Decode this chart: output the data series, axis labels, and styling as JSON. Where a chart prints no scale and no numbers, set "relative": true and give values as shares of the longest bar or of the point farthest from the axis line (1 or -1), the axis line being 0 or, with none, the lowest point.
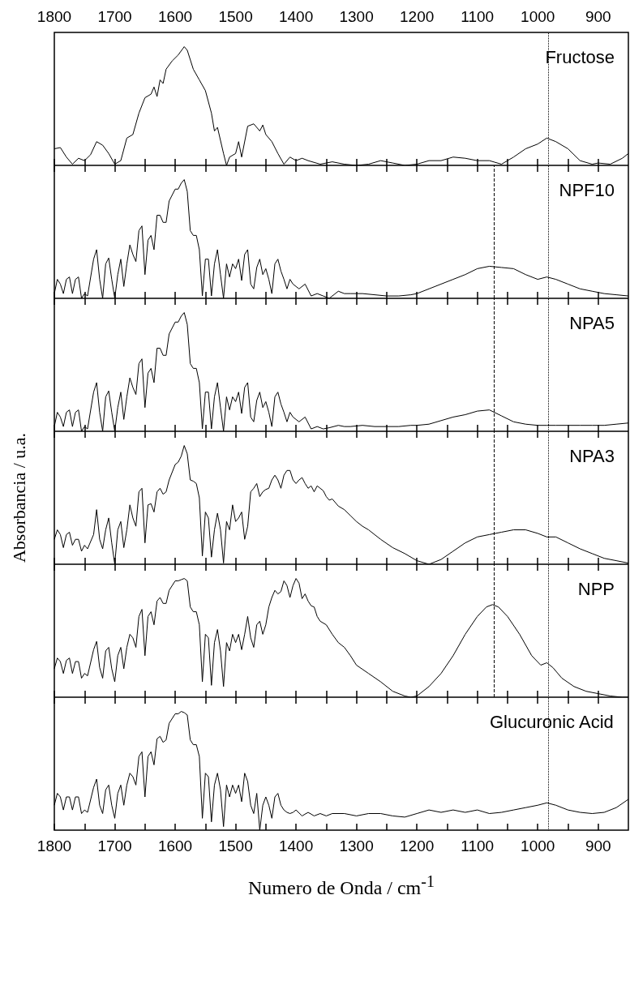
{
  "chart_data": [
    {
      "type": "line",
      "title": "Fructose",
      "relative": true,
      "color": "#000000",
      "xlim": [
        1800,
        850
      ],
      "xticks": [
        1800,
        {
          "value": 1750,
          "label": null
        },
        1700,
        {
          "value": 1650,
          "label": null
        },
        1600,
        {
          "value": 1550,
          "label": null
        },
        1500,
        {
          "value": 1450,
          "label": null
        },
        1400,
        {
          "value": 1350,
          "label": null
        },
        1300,
        {
          "value": 1250,
          "label": null
        },
        1200,
        {
          "value": 1150,
          "label": null
        },
        1100,
        {
          "value": 1050,
          "label": null
        },
        1000,
        {
          "value": 950,
          "label": null
        },
        900
      ],
      "ref_lines": [
        {
          "axis": "x",
          "value": 982,
          "line_style": "dotted"
        }
      ],
      "x": [
        1800,
        1790,
        1780,
        1770,
        1760,
        1750,
        1740,
        1730,
        1720,
        1710,
        1700,
        1690,
        1680,
        1670,
        1660,
        1650,
        1640,
        1635,
        1630,
        1625,
        1620,
        1615,
        1605,
        1595,
        1585,
        1580,
        1570,
        1560,
        1550,
        1540,
        1535,
        1530,
        1520,
        1515,
        1510,
        1500,
        1495,
        1490,
        1480,
        1470,
        1460,
        1455,
        1450,
        1440,
        1430,
        1420,
        1410,
        1400,
        1390,
        1380,
        1360,
        1340,
        1320,
        1300,
        1280,
        1260,
        1240,
        1220,
        1200,
        1180,
        1160,
        1140,
        1120,
        1100,
        1080,
        1060,
        1040,
        1020,
        1000,
        985,
        970,
        950,
        930,
        910,
        900,
        880,
        860,
        850
      ],
      "values": [
        0.14,
        0.15,
        0.07,
        0.01,
        0.06,
        0.04,
        0.09,
        0.2,
        0.17,
        0.1,
        0.01,
        0.04,
        0.23,
        0.26,
        0.44,
        0.57,
        0.6,
        0.66,
        0.58,
        0.72,
        0.69,
        0.81,
        0.88,
        0.93,
        1,
        0.97,
        0.81,
        0.72,
        0.63,
        0.44,
        0.29,
        0.32,
        0.1,
        0,
        0.07,
        0.1,
        0.2,
        0.07,
        0.33,
        0.35,
        0.29,
        0.34,
        0.26,
        0.2,
        0.1,
        0.01,
        0.07,
        0.04,
        0.06,
        0.04,
        0.01,
        0.03,
        0.01,
        0,
        0.01,
        0.04,
        0.02,
        0,
        0.01,
        0.04,
        0.04,
        0.07,
        0.06,
        0.04,
        0.04,
        0.01,
        0.07,
        0.14,
        0.18,
        0.23,
        0.2,
        0.14,
        0.04,
        0.01,
        0.02,
        0.01,
        0.06,
        0.1
      ]
    },
    {
      "type": "line",
      "title": "NPF10",
      "relative": true,
      "color": "#000000",
      "tick_labels": false,
      "xlim": [
        1800,
        850
      ],
      "xticks": [
        1800,
        {
          "value": 1750,
          "label": null
        },
        1700,
        {
          "value": 1650,
          "label": null
        },
        1600,
        {
          "value": 1550,
          "label": null
        },
        1500,
        {
          "value": 1450,
          "label": null
        },
        1400,
        {
          "value": 1350,
          "label": null
        },
        1300,
        {
          "value": 1250,
          "label": null
        },
        1200,
        {
          "value": 1150,
          "label": null
        },
        1100,
        {
          "value": 1050,
          "label": null
        },
        1000,
        {
          "value": 950,
          "label": null
        },
        900
      ],
      "ref_lines": [
        {
          "axis": "x",
          "value": 1073,
          "line_style": "dashed"
        },
        {
          "axis": "x",
          "value": 982,
          "line_style": "dotted"
        }
      ],
      "x": [
        1800,
        1795,
        1790,
        1785,
        1780,
        1775,
        1770,
        1765,
        1760,
        1755,
        1750,
        1745,
        1735,
        1730,
        1725,
        1720,
        1715,
        1710,
        1705,
        1700,
        1695,
        1690,
        1685,
        1680,
        1675,
        1670,
        1665,
        1660,
        1655,
        1650,
        1645,
        1640,
        1635,
        1630,
        1625,
        1620,
        1615,
        1610,
        1600,
        1595,
        1590,
        1585,
        1580,
        1575,
        1570,
        1565,
        1560,
        1555,
        1550,
        1545,
        1540,
        1535,
        1530,
        1525,
        1520,
        1515,
        1510,
        1505,
        1500,
        1495,
        1490,
        1485,
        1480,
        1475,
        1470,
        1465,
        1460,
        1455,
        1450,
        1445,
        1440,
        1435,
        1430,
        1425,
        1420,
        1415,
        1410,
        1405,
        1400,
        1395,
        1385,
        1375,
        1365,
        1355,
        1345,
        1330,
        1320,
        1310,
        1290,
        1270,
        1250,
        1230,
        1210,
        1200,
        1180,
        1160,
        1140,
        1120,
        1100,
        1080,
        1060,
        1040,
        1020,
        1000,
        985,
        970,
        950,
        930,
        910,
        890,
        870,
        850
      ],
      "values": [
        0.04,
        0.16,
        0.12,
        0.04,
        0.16,
        0.18,
        0.04,
        0.16,
        0.18,
        0,
        0.04,
        0.02,
        0.33,
        0.41,
        0.16,
        0,
        0.29,
        0.34,
        0.16,
        0,
        0.2,
        0.33,
        0.1,
        0.29,
        0.45,
        0.37,
        0.31,
        0.57,
        0.61,
        0.2,
        0.49,
        0.53,
        0.41,
        0.7,
        0.7,
        0.64,
        0.64,
        0.82,
        0.92,
        0.92,
        0.97,
        1,
        0.9,
        0.57,
        0.53,
        0.53,
        0.41,
        0.02,
        0.33,
        0.33,
        0.02,
        0.29,
        0.41,
        0.2,
        0,
        0.29,
        0.18,
        0.29,
        0.25,
        0.33,
        0.15,
        0.37,
        0.41,
        0.12,
        0.08,
        0.26,
        0.33,
        0.2,
        0.25,
        0.16,
        0.04,
        0.29,
        0.33,
        0.23,
        0.16,
        0.08,
        0.16,
        0.12,
        0.1,
        0.08,
        0.12,
        0.02,
        0.04,
        0.02,
        0,
        0.06,
        0.04,
        0.04,
        0.04,
        0.03,
        0.02,
        0.02,
        0.03,
        0.04,
        0.08,
        0.12,
        0.16,
        0.2,
        0.25,
        0.27,
        0.26,
        0.25,
        0.2,
        0.16,
        0.18,
        0.16,
        0.12,
        0.08,
        0.06,
        0.04,
        0.03,
        0.02
      ]
    },
    {
      "type": "line",
      "title": "NPA5",
      "relative": true,
      "color": "#000000",
      "tick_labels": false,
      "xlim": [
        1800,
        850
      ],
      "xticks": [
        1800,
        {
          "value": 1750,
          "label": null
        },
        1700,
        {
          "value": 1650,
          "label": null
        },
        1600,
        {
          "value": 1550,
          "label": null
        },
        1500,
        {
          "value": 1450,
          "label": null
        },
        1400,
        {
          "value": 1350,
          "label": null
        },
        1300,
        {
          "value": 1250,
          "label": null
        },
        1200,
        {
          "value": 1150,
          "label": null
        },
        1100,
        {
          "value": 1050,
          "label": null
        },
        1000,
        {
          "value": 950,
          "label": null
        },
        900
      ],
      "ref_lines": [
        {
          "axis": "x",
          "value": 1073,
          "line_style": "dashed"
        },
        {
          "axis": "x",
          "value": 982,
          "line_style": "dotted"
        }
      ],
      "x": [
        1800,
        1795,
        1790,
        1785,
        1780,
        1775,
        1770,
        1765,
        1760,
        1755,
        1750,
        1745,
        1735,
        1730,
        1725,
        1720,
        1715,
        1710,
        1705,
        1700,
        1695,
        1690,
        1685,
        1680,
        1675,
        1670,
        1665,
        1660,
        1655,
        1650,
        1645,
        1640,
        1635,
        1630,
        1625,
        1620,
        1615,
        1610,
        1600,
        1595,
        1590,
        1585,
        1580,
        1575,
        1570,
        1565,
        1560,
        1555,
        1550,
        1545,
        1540,
        1535,
        1530,
        1525,
        1520,
        1515,
        1510,
        1505,
        1500,
        1495,
        1490,
        1485,
        1480,
        1475,
        1470,
        1465,
        1460,
        1455,
        1450,
        1445,
        1440,
        1435,
        1430,
        1425,
        1420,
        1415,
        1410,
        1405,
        1400,
        1395,
        1385,
        1375,
        1365,
        1355,
        1345,
        1330,
        1320,
        1310,
        1290,
        1270,
        1250,
        1230,
        1210,
        1200,
        1180,
        1160,
        1140,
        1120,
        1100,
        1080,
        1060,
        1040,
        1020,
        1000,
        985,
        970,
        950,
        930,
        910,
        890,
        870,
        850
      ],
      "values": [
        0.04,
        0.16,
        0.12,
        0.04,
        0.16,
        0.18,
        0.04,
        0.16,
        0.18,
        0,
        0.04,
        0.02,
        0.33,
        0.41,
        0.16,
        0,
        0.29,
        0.34,
        0.16,
        0,
        0.2,
        0.33,
        0.1,
        0.29,
        0.45,
        0.37,
        0.31,
        0.57,
        0.61,
        0.2,
        0.49,
        0.53,
        0.41,
        0.7,
        0.7,
        0.64,
        0.64,
        0.82,
        0.92,
        0.92,
        0.97,
        1,
        0.9,
        0.57,
        0.53,
        0.53,
        0.41,
        0.02,
        0.33,
        0.33,
        0.02,
        0.29,
        0.41,
        0.2,
        0,
        0.29,
        0.18,
        0.29,
        0.25,
        0.33,
        0.15,
        0.37,
        0.41,
        0.12,
        0.08,
        0.26,
        0.33,
        0.2,
        0.25,
        0.16,
        0.04,
        0.29,
        0.33,
        0.23,
        0.16,
        0.08,
        0.16,
        0.12,
        0.1,
        0.08,
        0.12,
        0.02,
        0.04,
        0.02,
        0.03,
        0.05,
        0.04,
        0.04,
        0.05,
        0.04,
        0.04,
        0.04,
        0.05,
        0.05,
        0.06,
        0.09,
        0.12,
        0.14,
        0.17,
        0.18,
        0.13,
        0.08,
        0.06,
        0.05,
        0.05,
        0.05,
        0.05,
        0.05,
        0.05,
        0.05,
        0.06,
        0.07
      ]
    },
    {
      "type": "line",
      "title": "NPA3",
      "ylabel": "Absorbancia / u.a.",
      "relative": true,
      "color": "#000000",
      "tick_labels": false,
      "xlim": [
        1800,
        850
      ],
      "xticks": [
        1800,
        {
          "value": 1750,
          "label": null
        },
        1700,
        {
          "value": 1650,
          "label": null
        },
        1600,
        {
          "value": 1550,
          "label": null
        },
        1500,
        {
          "value": 1450,
          "label": null
        },
        1400,
        {
          "value": 1350,
          "label": null
        },
        1300,
        {
          "value": 1250,
          "label": null
        },
        1200,
        {
          "value": 1150,
          "label": null
        },
        1100,
        {
          "value": 1050,
          "label": null
        },
        1000,
        {
          "value": 950,
          "label": null
        },
        900
      ],
      "ref_lines": [
        {
          "axis": "x",
          "value": 1073,
          "line_style": "dashed"
        },
        {
          "axis": "x",
          "value": 982,
          "line_style": "dotted"
        }
      ],
      "x": [
        1800,
        1795,
        1790,
        1785,
        1780,
        1775,
        1770,
        1765,
        1760,
        1755,
        1750,
        1745,
        1735,
        1730,
        1725,
        1720,
        1715,
        1710,
        1705,
        1700,
        1695,
        1690,
        1685,
        1680,
        1675,
        1670,
        1665,
        1660,
        1655,
        1650,
        1645,
        1640,
        1635,
        1630,
        1625,
        1620,
        1615,
        1610,
        1600,
        1595,
        1590,
        1585,
        1580,
        1575,
        1570,
        1565,
        1560,
        1555,
        1550,
        1545,
        1540,
        1535,
        1530,
        1525,
        1520,
        1515,
        1510,
        1505,
        1500,
        1495,
        1490,
        1485,
        1480,
        1475,
        1470,
        1465,
        1460,
        1455,
        1450,
        1445,
        1440,
        1435,
        1430,
        1425,
        1420,
        1415,
        1410,
        1405,
        1400,
        1395,
        1390,
        1385,
        1380,
        1375,
        1370,
        1365,
        1360,
        1355,
        1350,
        1345,
        1340,
        1330,
        1320,
        1310,
        1300,
        1290,
        1280,
        1260,
        1240,
        1220,
        1200,
        1180,
        1160,
        1140,
        1120,
        1100,
        1080,
        1060,
        1040,
        1020,
        1000,
        985,
        970,
        950,
        930,
        910,
        890,
        870,
        850
      ],
      "values": [
        0.21,
        0.29,
        0.25,
        0.14,
        0.25,
        0.27,
        0.16,
        0.21,
        0.21,
        0.11,
        0.16,
        0.13,
        0.25,
        0.46,
        0.21,
        0.13,
        0.29,
        0.39,
        0.18,
        0,
        0.29,
        0.36,
        0.14,
        0.29,
        0.5,
        0.39,
        0.32,
        0.61,
        0.64,
        0.18,
        0.5,
        0.51,
        0.44,
        0.61,
        0.64,
        0.59,
        0.61,
        0.71,
        0.84,
        0.86,
        0.91,
        1,
        0.93,
        0.71,
        0.7,
        0.68,
        0.56,
        0.07,
        0.44,
        0.39,
        0.06,
        0.29,
        0.43,
        0.29,
        0.01,
        0.36,
        0.29,
        0.5,
        0.36,
        0.39,
        0.44,
        0.21,
        0.32,
        0.61,
        0.64,
        0.68,
        0.57,
        0.61,
        0.63,
        0.64,
        0.71,
        0.75,
        0.71,
        0.64,
        0.75,
        0.79,
        0.79,
        0.71,
        0.68,
        0.71,
        0.73,
        0.68,
        0.64,
        0.66,
        0.61,
        0.66,
        0.64,
        0.62,
        0.57,
        0.54,
        0.55,
        0.49,
        0.46,
        0.41,
        0.36,
        0.32,
        0.29,
        0.21,
        0.14,
        0.09,
        0.03,
        0,
        0.04,
        0.11,
        0.18,
        0.23,
        0.25,
        0.27,
        0.29,
        0.29,
        0.26,
        0.23,
        0.23,
        0.18,
        0.13,
        0.09,
        0.05,
        0.03,
        0.01
      ]
    },
    {
      "type": "line",
      "title": "NPP",
      "relative": true,
      "color": "#000000",
      "tick_labels": false,
      "xlim": [
        1800,
        850
      ],
      "xticks": [
        1800,
        {
          "value": 1750,
          "label": null
        },
        1700,
        {
          "value": 1650,
          "label": null
        },
        1600,
        {
          "value": 1550,
          "label": null
        },
        1500,
        {
          "value": 1450,
          "label": null
        },
        1400,
        {
          "value": 1350,
          "label": null
        },
        1300,
        {
          "value": 1250,
          "label": null
        },
        1200,
        {
          "value": 1150,
          "label": null
        },
        1100,
        {
          "value": 1050,
          "label": null
        },
        1000,
        {
          "value": 950,
          "label": null
        },
        900
      ],
      "ref_lines": [
        {
          "axis": "x",
          "value": 1073,
          "line_style": "dashed"
        },
        {
          "axis": "x",
          "value": 982,
          "line_style": "dotted"
        }
      ],
      "x": [
        1800,
        1795,
        1790,
        1785,
        1780,
        1775,
        1770,
        1765,
        1760,
        1755,
        1750,
        1745,
        1735,
        1730,
        1725,
        1720,
        1715,
        1710,
        1705,
        1700,
        1695,
        1690,
        1685,
        1680,
        1675,
        1670,
        1665,
        1660,
        1655,
        1650,
        1645,
        1640,
        1635,
        1630,
        1625,
        1620,
        1615,
        1610,
        1600,
        1595,
        1590,
        1585,
        1580,
        1575,
        1570,
        1565,
        1560,
        1555,
        1550,
        1545,
        1540,
        1535,
        1530,
        1525,
        1520,
        1515,
        1510,
        1505,
        1500,
        1495,
        1490,
        1485,
        1480,
        1475,
        1470,
        1465,
        1460,
        1455,
        1450,
        1445,
        1440,
        1435,
        1430,
        1425,
        1420,
        1415,
        1410,
        1405,
        1400,
        1395,
        1390,
        1385,
        1380,
        1375,
        1370,
        1365,
        1360,
        1350,
        1340,
        1330,
        1320,
        1310,
        1300,
        1280,
        1260,
        1240,
        1220,
        1210,
        1200,
        1180,
        1160,
        1140,
        1120,
        1100,
        1085,
        1075,
        1065,
        1050,
        1030,
        1010,
        995,
        985,
        975,
        960,
        940,
        920,
        900,
        880,
        860,
        850
      ],
      "values": [
        0.24,
        0.33,
        0.3,
        0.2,
        0.31,
        0.33,
        0.2,
        0.3,
        0.3,
        0.16,
        0.2,
        0.18,
        0.4,
        0.47,
        0.25,
        0.16,
        0.39,
        0.42,
        0.24,
        0.13,
        0.35,
        0.42,
        0.24,
        0.42,
        0.53,
        0.5,
        0.42,
        0.68,
        0.74,
        0.35,
        0.68,
        0.72,
        0.61,
        0.81,
        0.84,
        0.79,
        0.79,
        0.9,
        0.98,
        0.98,
        0.99,
        1,
        0.98,
        0.76,
        0.72,
        0.72,
        0.61,
        0.13,
        0.53,
        0.5,
        0.1,
        0.46,
        0.57,
        0.39,
        0.09,
        0.46,
        0.39,
        0.53,
        0.46,
        0.53,
        0.4,
        0.53,
        0.68,
        0.5,
        0.42,
        0.61,
        0.64,
        0.53,
        0.61,
        0.76,
        0.84,
        0.9,
        0.87,
        0.89,
        0.98,
        0.94,
        0.84,
        0.94,
        1,
        0.96,
        0.83,
        0.87,
        0.81,
        0.77,
        0.76,
        0.68,
        0.64,
        0.61,
        0.53,
        0.46,
        0.42,
        0.35,
        0.27,
        0.2,
        0.13,
        0.05,
        0.01,
        0,
        0.01,
        0.09,
        0.2,
        0.35,
        0.53,
        0.68,
        0.76,
        0.78,
        0.76,
        0.68,
        0.53,
        0.35,
        0.27,
        0.29,
        0.25,
        0.16,
        0.09,
        0.05,
        0.03,
        0.01,
        0,
        0
      ]
    },
    {
      "type": "line",
      "title": "Glucuronic Acid",
      "xlabel": "Numero de Onda / cm$^{-1}$",
      "relative": true,
      "color": "#000000",
      "xlim": [
        1800,
        850
      ],
      "xticks": [
        1800,
        {
          "value": 1750,
          "label": null
        },
        1700,
        {
          "value": 1650,
          "label": null
        },
        1600,
        {
          "value": 1550,
          "label": null
        },
        1500,
        {
          "value": 1450,
          "label": null
        },
        1400,
        {
          "value": 1350,
          "label": null
        },
        1300,
        {
          "value": 1250,
          "label": null
        },
        1200,
        {
          "value": 1150,
          "label": null
        },
        1100,
        {
          "value": 1050,
          "label": null
        },
        1000,
        {
          "value": 950,
          "label": null
        },
        900
      ],
      "ref_lines": [
        {
          "axis": "x",
          "value": 982,
          "line_style": "dotted"
        }
      ],
      "x": [
        1800,
        1795,
        1790,
        1785,
        1780,
        1775,
        1770,
        1765,
        1760,
        1755,
        1750,
        1745,
        1735,
        1730,
        1725,
        1720,
        1715,
        1710,
        1705,
        1700,
        1695,
        1690,
        1685,
        1680,
        1675,
        1670,
        1665,
        1660,
        1655,
        1650,
        1645,
        1640,
        1635,
        1630,
        1625,
        1620,
        1615,
        1610,
        1600,
        1595,
        1590,
        1585,
        1580,
        1575,
        1570,
        1565,
        1560,
        1555,
        1550,
        1545,
        1540,
        1535,
        1530,
        1525,
        1520,
        1515,
        1510,
        1505,
        1500,
        1495,
        1490,
        1485,
        1480,
        1475,
        1470,
        1465,
        1460,
        1455,
        1450,
        1445,
        1440,
        1435,
        1430,
        1425,
        1420,
        1415,
        1410,
        1405,
        1400,
        1390,
        1380,
        1370,
        1360,
        1350,
        1340,
        1320,
        1300,
        1280,
        1260,
        1240,
        1220,
        1200,
        1180,
        1160,
        1140,
        1120,
        1100,
        1080,
        1060,
        1040,
        1020,
        1000,
        985,
        970,
        950,
        930,
        910,
        890,
        870,
        850
      ],
      "values": [
        0.21,
        0.31,
        0.28,
        0.17,
        0.28,
        0.28,
        0.17,
        0.28,
        0.28,
        0.14,
        0.17,
        0.15,
        0.36,
        0.43,
        0.21,
        0.14,
        0.34,
        0.38,
        0.21,
        0.1,
        0.31,
        0.38,
        0.21,
        0.38,
        0.48,
        0.45,
        0.38,
        0.62,
        0.66,
        0.28,
        0.62,
        0.66,
        0.55,
        0.77,
        0.79,
        0.74,
        0.76,
        0.9,
        0.98,
        0.98,
        1,
        0.99,
        0.97,
        0.76,
        0.72,
        0.72,
        0.62,
        0.1,
        0.48,
        0.45,
        0.07,
        0.38,
        0.48,
        0.34,
        0.03,
        0.38,
        0.28,
        0.38,
        0.31,
        0.38,
        0.24,
        0.48,
        0.41,
        0.21,
        0.14,
        0.31,
        0,
        0.21,
        0.28,
        0.21,
        0.1,
        0.28,
        0.31,
        0.21,
        0.17,
        0.15,
        0.14,
        0.15,
        0.17,
        0.12,
        0.15,
        0.12,
        0.14,
        0.12,
        0.14,
        0.14,
        0.12,
        0.14,
        0.14,
        0.12,
        0.11,
        0.14,
        0.17,
        0.15,
        0.17,
        0.15,
        0.17,
        0.14,
        0.15,
        0.17,
        0.19,
        0.21,
        0.23,
        0.21,
        0.17,
        0.15,
        0.14,
        0.15,
        0.19,
        0.26
      ]
    }
  ]
}
